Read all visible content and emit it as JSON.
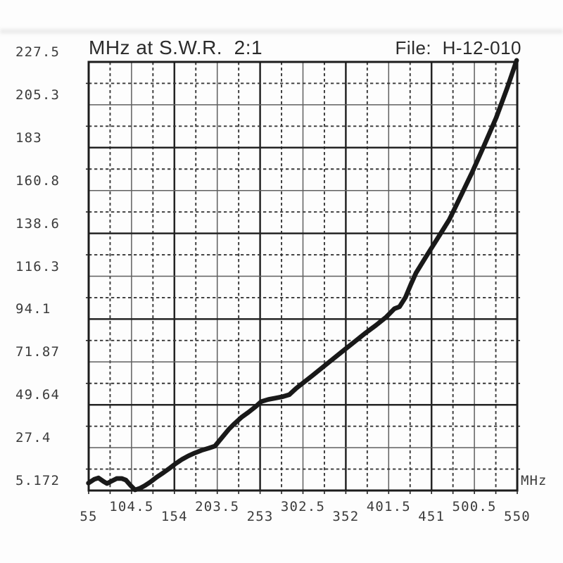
{
  "header": {
    "title": "MHz at S.W.R.  2:1",
    "file_label": "File:  H-12-010"
  },
  "chart_data": {
    "type": "line",
    "title": "MHz at S.W.R.  2:1",
    "file_id": "H-12-010",
    "x_unit": "MHz",
    "legend": "none",
    "grid": {
      "solid_major_every_mhz": 99,
      "solid_minor_every_mhz": 49.5,
      "dashed_every_mhz": 24.75,
      "style": "alternating solid and dashed, staggered x labels"
    },
    "x_range": [
      55,
      550
    ],
    "y_range": [
      5.172,
      227.5
    ],
    "x_tick_labels": [
      "55",
      "104.5",
      "154",
      "203.5",
      "253",
      "302.5",
      "352",
      "401.5",
      "451",
      "500.5",
      "550"
    ],
    "y_tick_labels": [
      "227.5",
      "205.3",
      "183",
      "160.8",
      "138.6",
      "116.3",
      "94.1",
      "71.87",
      "49.64",
      "27.4",
      "5.172"
    ],
    "series": [
      {
        "name": "frequency sweep trace",
        "points": [
          [
            54.7,
            9.0
          ],
          [
            61.5,
            11.0
          ],
          [
            66.3,
            11.7
          ],
          [
            72.0,
            9.9
          ],
          [
            76.1,
            8.8
          ],
          [
            80.9,
            9.9
          ],
          [
            87.4,
            11.4
          ],
          [
            93.1,
            11.4
          ],
          [
            97.9,
            10.6
          ],
          [
            103.6,
            7.7
          ],
          [
            108.5,
            5.5
          ],
          [
            114.1,
            6.3
          ],
          [
            119.8,
            7.7
          ],
          [
            126.3,
            9.6
          ],
          [
            133.6,
            12.1
          ],
          [
            140.9,
            14.3
          ],
          [
            149.0,
            16.9
          ],
          [
            155.5,
            19.1
          ],
          [
            162.7,
            21.3
          ],
          [
            170.0,
            23.1
          ],
          [
            177.3,
            24.6
          ],
          [
            185.4,
            26.0
          ],
          [
            193.5,
            27.1
          ],
          [
            200.8,
            28.2
          ],
          [
            208.9,
            32.6
          ],
          [
            217.0,
            37.0
          ],
          [
            223.5,
            39.9
          ],
          [
            231.6,
            43.2
          ],
          [
            239.7,
            45.8
          ],
          [
            247.8,
            48.7
          ],
          [
            254.3,
            51.3
          ],
          [
            262.4,
            52.4
          ],
          [
            270.5,
            53.1
          ],
          [
            278.6,
            53.8
          ],
          [
            286.7,
            54.9
          ],
          [
            294.8,
            58.2
          ],
          [
            302.9,
            61.1
          ],
          [
            313.4,
            64.8
          ],
          [
            325.6,
            69.2
          ],
          [
            337.7,
            73.6
          ],
          [
            349.9,
            78.0
          ],
          [
            362.0,
            82.3
          ],
          [
            374.2,
            86.7
          ],
          [
            386.3,
            90.7
          ],
          [
            398.5,
            95.1
          ],
          [
            408.2,
            99.5
          ],
          [
            414.0,
            100.5
          ],
          [
            421.0,
            105.5
          ],
          [
            427.0,
            112.0
          ],
          [
            433.0,
            118.0
          ],
          [
            444.7,
            126.5
          ],
          [
            457.6,
            135.7
          ],
          [
            471.4,
            145.6
          ],
          [
            485.2,
            158.4
          ],
          [
            498.1,
            170.4
          ],
          [
            511.9,
            184.3
          ],
          [
            525.7,
            198.6
          ],
          [
            538.6,
            214.3
          ],
          [
            549.3,
            228.3
          ]
        ]
      }
    ]
  },
  "colors": {
    "ink": "#1c1c1c",
    "curve": "#191919",
    "grid_major": "#242424",
    "grid_minor": "#5f5f5f",
    "label_text": "#3b3b3b",
    "background": "#fdfdfd"
  }
}
